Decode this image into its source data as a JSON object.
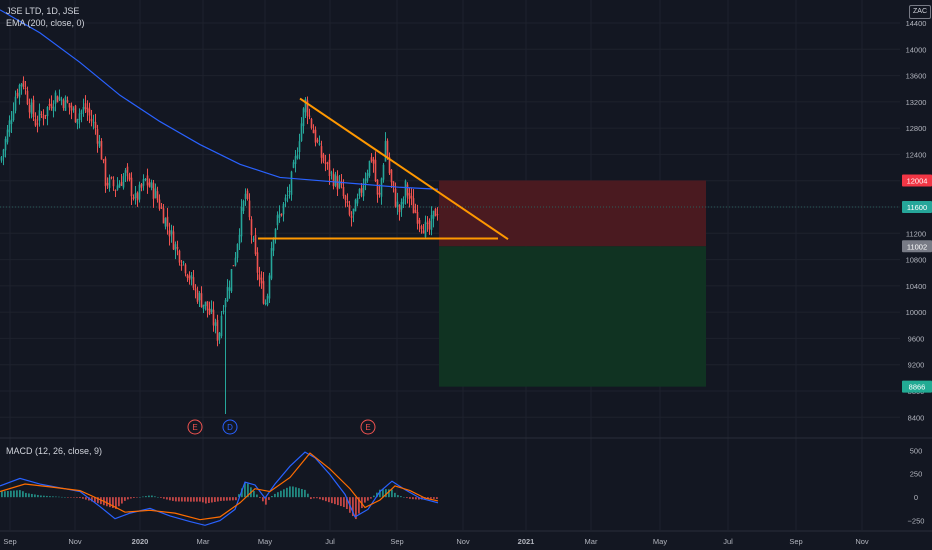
{
  "legend": {
    "symbol": "JSE LTD, 1D, JSE",
    "ema": "EMA (200, close, 0)",
    "macd": "MACD (12, 26, close, 9)"
  },
  "currency": "ZAC",
  "colors": {
    "up": "#26a69a",
    "down": "#ef5350",
    "ema": "#2962ff",
    "macd_line": "#2962ff",
    "signal_line": "#ff6d00",
    "trendline": "#ff9800",
    "stop_zone": "#4a1a20",
    "target_zone": "#103322"
  },
  "chart_data": {
    "type": "candlestick",
    "price_axis": {
      "ticks": [
        "14400",
        "14000",
        "13600",
        "13200",
        "12800",
        "12400",
        "12000",
        "11600",
        "11200",
        "10800",
        "10400",
        "10000",
        "9600",
        "9200",
        "8800",
        "8400"
      ],
      "ylim": [
        8100,
        14750
      ]
    },
    "time_axis": {
      "labels": [
        "Sep",
        "Nov",
        "2020",
        "Mar",
        "May",
        "Jul",
        "Sep",
        "Nov",
        "2021",
        "Mar",
        "May",
        "Jul",
        "Sep",
        "Nov"
      ]
    },
    "price_labels": [
      {
        "text": "12004",
        "value": 12004,
        "color": "#f23645"
      },
      {
        "text": "11600",
        "value": 11600,
        "color": "#26a69a"
      },
      {
        "text": "11002",
        "value": 11002,
        "color": "#787b86"
      },
      {
        "text": "8866",
        "value": 8866,
        "color": "#22ab94"
      }
    ],
    "price_path": [
      [
        0,
        12300
      ],
      [
        8,
        12800
      ],
      [
        15,
        13300
      ],
      [
        22,
        13550
      ],
      [
        28,
        13200
      ],
      [
        35,
        12900
      ],
      [
        45,
        13050
      ],
      [
        55,
        13300
      ],
      [
        65,
        13200
      ],
      [
        75,
        13000
      ],
      [
        85,
        13100
      ],
      [
        95,
        12800
      ],
      [
        100,
        12500
      ],
      [
        105,
        12000
      ],
      [
        115,
        11900
      ],
      [
        125,
        12100
      ],
      [
        135,
        11700
      ],
      [
        145,
        12000
      ],
      [
        155,
        11800
      ],
      [
        165,
        11400
      ],
      [
        175,
        11000
      ],
      [
        185,
        10700
      ],
      [
        195,
        10300
      ],
      [
        205,
        10100
      ],
      [
        212,
        9900
      ],
      [
        218,
        9600
      ],
      [
        222,
        10100
      ],
      [
        228,
        10400
      ],
      [
        235,
        10900
      ],
      [
        240,
        11400
      ],
      [
        245,
        11800
      ],
      [
        250,
        11300
      ],
      [
        255,
        10800
      ],
      [
        260,
        10400
      ],
      [
        266,
        10100
      ],
      [
        272,
        11200
      ],
      [
        280,
        11500
      ],
      [
        288,
        11800
      ],
      [
        295,
        12300
      ],
      [
        300,
        12800
      ],
      [
        305,
        13200
      ],
      [
        312,
        12800
      ],
      [
        320,
        12400
      ],
      [
        330,
        12100
      ],
      [
        340,
        11900
      ],
      [
        350,
        11400
      ],
      [
        358,
        11700
      ],
      [
        365,
        12100
      ],
      [
        372,
        12400
      ],
      [
        378,
        11600
      ],
      [
        385,
        12600
      ],
      [
        390,
        12000
      ],
      [
        395,
        11700
      ],
      [
        400,
        11500
      ],
      [
        405,
        11900
      ],
      [
        412,
        11600
      ],
      [
        420,
        11400
      ],
      [
        428,
        11200
      ],
      [
        434,
        11500
      ],
      [
        438,
        11600
      ]
    ],
    "ema200": [
      [
        0,
        14600
      ],
      [
        40,
        14250
      ],
      [
        80,
        13800
      ],
      [
        120,
        13300
      ],
      [
        160,
        12900
      ],
      [
        200,
        12550
      ],
      [
        240,
        12250
      ],
      [
        280,
        12050
      ],
      [
        320,
        12000
      ],
      [
        360,
        11950
      ],
      [
        400,
        11900
      ],
      [
        438,
        11870
      ]
    ],
    "annotations": {
      "triangle_upper": [
        [
          300,
          13250
        ],
        [
          508,
          11110
        ]
      ],
      "triangle_lower": [
        [
          258,
          11120
        ],
        [
          498,
          11120
        ]
      ],
      "stop_zone": {
        "x_from": 439,
        "x_to": 706,
        "y_top": 12004,
        "y_bottom": 11002
      },
      "target_zone": {
        "x_from": 439,
        "x_to": 706,
        "y_top": 11002,
        "y_bottom": 8866
      },
      "events": [
        {
          "label": "E",
          "x": 195,
          "color": "#ef5350"
        },
        {
          "label": "D",
          "x": 230,
          "color": "#2962ff"
        },
        {
          "label": "E",
          "x": 368,
          "color": "#ef5350"
        }
      ]
    },
    "macd": {
      "ticks": [
        "500",
        "250",
        "0",
        "−250"
      ],
      "ylim": [
        -350,
        620
      ],
      "macd_line": [
        [
          0,
          120
        ],
        [
          20,
          200
        ],
        [
          40,
          140
        ],
        [
          60,
          100
        ],
        [
          80,
          60
        ],
        [
          100,
          -100
        ],
        [
          115,
          -230
        ],
        [
          130,
          -170
        ],
        [
          150,
          -120
        ],
        [
          170,
          -200
        ],
        [
          190,
          -260
        ],
        [
          205,
          -300
        ],
        [
          220,
          -250
        ],
        [
          235,
          -130
        ],
        [
          245,
          160
        ],
        [
          255,
          130
        ],
        [
          265,
          -10
        ],
        [
          275,
          140
        ],
        [
          290,
          330
        ],
        [
          305,
          480
        ],
        [
          315,
          420
        ],
        [
          330,
          240
        ],
        [
          345,
          30
        ],
        [
          355,
          -210
        ],
        [
          368,
          -130
        ],
        [
          380,
          60
        ],
        [
          392,
          170
        ],
        [
          405,
          80
        ],
        [
          420,
          -10
        ],
        [
          438,
          -60
        ]
      ],
      "signal_line": [
        [
          0,
          60
        ],
        [
          25,
          140
        ],
        [
          50,
          110
        ],
        [
          80,
          70
        ],
        [
          105,
          -50
        ],
        [
          125,
          -160
        ],
        [
          150,
          -140
        ],
        [
          175,
          -170
        ],
        [
          200,
          -240
        ],
        [
          220,
          -210
        ],
        [
          240,
          -60
        ],
        [
          255,
          90
        ],
        [
          270,
          60
        ],
        [
          290,
          210
        ],
        [
          310,
          470
        ],
        [
          330,
          300
        ],
        [
          350,
          90
        ],
        [
          365,
          -110
        ],
        [
          380,
          -30
        ],
        [
          395,
          120
        ],
        [
          410,
          70
        ],
        [
          425,
          -10
        ],
        [
          438,
          -40
        ]
      ]
    }
  }
}
